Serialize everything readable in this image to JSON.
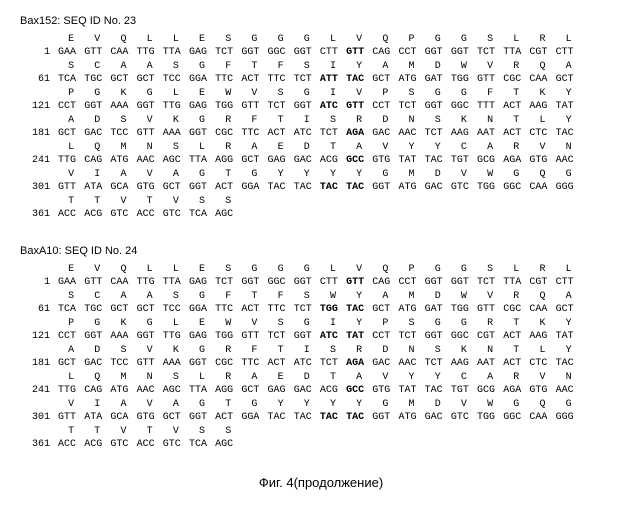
{
  "sequences": [
    {
      "header": "Bax152: SEQ ID No. 23",
      "rows": [
        {
          "pos": "1",
          "aa": [
            "E",
            "V",
            "Q",
            "L",
            "L",
            "E",
            "S",
            "G",
            "G",
            "G",
            "L",
            "V",
            "Q",
            "P",
            "G",
            "G",
            "S",
            "L",
            "R",
            "L"
          ],
          "nt": [
            "GAA",
            "GTT",
            "CAA",
            "TTG",
            "TTA",
            "GAG",
            "TCT",
            "GGT",
            "GGC",
            "GGT",
            "CTT",
            "GTT",
            "CAG",
            "CCT",
            "GGT",
            "GGT",
            "TCT",
            "TTA",
            "CGT",
            "CTT"
          ],
          "bold_nt": [
            11
          ]
        },
        {
          "pos": "61",
          "aa": [
            "S",
            "C",
            "A",
            "A",
            "S",
            "G",
            "F",
            "T",
            "F",
            "S",
            "I",
            "Y",
            "A",
            "M",
            "D",
            "W",
            "V",
            "R",
            "Q",
            "A"
          ],
          "nt": [
            "TCA",
            "TGC",
            "GCT",
            "GCT",
            "TCC",
            "GGA",
            "TTC",
            "ACT",
            "TTC",
            "TCT",
            "ATT",
            "TAC",
            "GCT",
            "ATG",
            "GAT",
            "TGG",
            "GTT",
            "CGC",
            "CAA",
            "GCT"
          ],
          "bold_nt": [
            10,
            11
          ]
        },
        {
          "pos": "121",
          "aa": [
            "P",
            "G",
            "K",
            "G",
            "L",
            "E",
            "W",
            "V",
            "S",
            "G",
            "I",
            "V",
            "P",
            "S",
            "G",
            "G",
            "F",
            "T",
            "K",
            "Y"
          ],
          "nt": [
            "CCT",
            "GGT",
            "AAA",
            "GGT",
            "TTG",
            "GAG",
            "TGG",
            "GTT",
            "TCT",
            "GGT",
            "ATC",
            "GTT",
            "CCT",
            "TCT",
            "GGT",
            "GGC",
            "TTT",
            "ACT",
            "AAG",
            "TAT"
          ],
          "bold_nt": [
            10,
            11
          ]
        },
        {
          "pos": "181",
          "aa": [
            "A",
            "D",
            "S",
            "V",
            "K",
            "G",
            "R",
            "F",
            "T",
            "I",
            "S",
            "R",
            "D",
            "N",
            "S",
            "K",
            "N",
            "T",
            "L",
            "Y"
          ],
          "nt": [
            "GCT",
            "GAC",
            "TCC",
            "GTT",
            "AAA",
            "GGT",
            "CGC",
            "TTC",
            "ACT",
            "ATC",
            "TCT",
            "AGA",
            "GAC",
            "AAC",
            "TCT",
            "AAG",
            "AAT",
            "ACT",
            "CTC",
            "TAC"
          ],
          "bold_nt": [
            11
          ]
        },
        {
          "pos": "241",
          "aa": [
            "L",
            "Q",
            "M",
            "N",
            "S",
            "L",
            "R",
            "A",
            "E",
            "D",
            "T",
            "A",
            "V",
            "Y",
            "Y",
            "C",
            "A",
            "R",
            "V",
            "N"
          ],
          "nt": [
            "TTG",
            "CAG",
            "ATG",
            "AAC",
            "AGC",
            "TTA",
            "AGG",
            "GCT",
            "GAG",
            "GAC",
            "ACG",
            "GCC",
            "GTG",
            "TAT",
            "TAC",
            "TGT",
            "GCG",
            "AGA",
            "GTG",
            "AAC"
          ],
          "bold_nt": [
            11
          ]
        },
        {
          "pos": "301",
          "aa": [
            "V",
            "I",
            "A",
            "V",
            "A",
            "G",
            "T",
            "G",
            "Y",
            "Y",
            "Y",
            "Y",
            "G",
            "M",
            "D",
            "V",
            "W",
            "G",
            "Q",
            "G"
          ],
          "nt": [
            "GTT",
            "ATA",
            "GCA",
            "GTG",
            "GCT",
            "GGT",
            "ACT",
            "GGA",
            "TAC",
            "TAC",
            "TAC",
            "TAC",
            "GGT",
            "ATG",
            "GAC",
            "GTC",
            "TGG",
            "GGC",
            "CAA",
            "GGG"
          ],
          "bold_nt": [
            10,
            11
          ]
        },
        {
          "pos": "361",
          "aa": [
            "T",
            "T",
            "V",
            "T",
            "V",
            "S",
            "S"
          ],
          "nt": [
            "ACC",
            "ACG",
            "GTC",
            "ACC",
            "GTC",
            "TCA",
            "AGC"
          ],
          "bold_nt": []
        }
      ]
    },
    {
      "header": "BaxA10: SEQ ID No. 24",
      "rows": [
        {
          "pos": "1",
          "aa": [
            "E",
            "V",
            "Q",
            "L",
            "L",
            "E",
            "S",
            "G",
            "G",
            "G",
            "L",
            "V",
            "Q",
            "P",
            "G",
            "G",
            "S",
            "L",
            "R",
            "L"
          ],
          "nt": [
            "GAA",
            "GTT",
            "CAA",
            "TTG",
            "TTA",
            "GAG",
            "TCT",
            "GGT",
            "GGC",
            "GGT",
            "CTT",
            "GTT",
            "CAG",
            "CCT",
            "GGT",
            "GGT",
            "TCT",
            "TTA",
            "CGT",
            "CTT"
          ],
          "bold_nt": [
            11
          ]
        },
        {
          "pos": "61",
          "aa": [
            "S",
            "C",
            "A",
            "A",
            "S",
            "G",
            "F",
            "T",
            "F",
            "S",
            "W",
            "Y",
            "A",
            "M",
            "D",
            "W",
            "V",
            "R",
            "Q",
            "A"
          ],
          "nt": [
            "TCA",
            "TGC",
            "GCT",
            "GCT",
            "TCC",
            "GGA",
            "TTC",
            "ACT",
            "TTC",
            "TCT",
            "TGG",
            "TAC",
            "GCT",
            "ATG",
            "GAT",
            "TGG",
            "GTT",
            "CGC",
            "CAA",
            "GCT"
          ],
          "bold_nt": [
            10,
            11
          ]
        },
        {
          "pos": "121",
          "aa": [
            "P",
            "G",
            "K",
            "G",
            "L",
            "E",
            "W",
            "V",
            "S",
            "G",
            "I",
            "Y",
            "P",
            "S",
            "G",
            "G",
            "R",
            "T",
            "K",
            "Y"
          ],
          "nt": [
            "CCT",
            "GGT",
            "AAA",
            "GGT",
            "TTG",
            "GAG",
            "TGG",
            "GTT",
            "TCT",
            "GGT",
            "ATC",
            "TAT",
            "CCT",
            "TCT",
            "GGT",
            "GGC",
            "CGT",
            "ACT",
            "AAG",
            "TAT"
          ],
          "bold_nt": [
            10,
            11
          ]
        },
        {
          "pos": "181",
          "aa": [
            "A",
            "D",
            "S",
            "V",
            "K",
            "G",
            "R",
            "F",
            "T",
            "I",
            "S",
            "R",
            "D",
            "N",
            "S",
            "K",
            "N",
            "T",
            "L",
            "Y"
          ],
          "nt": [
            "GCT",
            "GAC",
            "TCC",
            "GTT",
            "AAA",
            "GGT",
            "CGC",
            "TTC",
            "ACT",
            "ATC",
            "TCT",
            "AGA",
            "GAC",
            "AAC",
            "TCT",
            "AAG",
            "AAT",
            "ACT",
            "CTC",
            "TAC"
          ],
          "bold_nt": [
            11
          ]
        },
        {
          "pos": "241",
          "aa": [
            "L",
            "Q",
            "M",
            "N",
            "S",
            "L",
            "R",
            "A",
            "E",
            "D",
            "T",
            "A",
            "V",
            "Y",
            "Y",
            "C",
            "A",
            "R",
            "V",
            "N"
          ],
          "nt": [
            "TTG",
            "CAG",
            "ATG",
            "AAC",
            "AGC",
            "TTA",
            "AGG",
            "GCT",
            "GAG",
            "GAC",
            "ACG",
            "GCC",
            "GTG",
            "TAT",
            "TAC",
            "TGT",
            "GCG",
            "AGA",
            "GTG",
            "AAC"
          ],
          "bold_nt": [
            11
          ]
        },
        {
          "pos": "301",
          "aa": [
            "V",
            "I",
            "A",
            "V",
            "A",
            "G",
            "T",
            "G",
            "Y",
            "Y",
            "Y",
            "Y",
            "G",
            "M",
            "D",
            "V",
            "W",
            "G",
            "Q",
            "G"
          ],
          "nt": [
            "GTT",
            "ATA",
            "GCA",
            "GTG",
            "GCT",
            "GGT",
            "ACT",
            "GGA",
            "TAC",
            "TAC",
            "TAC",
            "TAC",
            "GGT",
            "ATG",
            "GAC",
            "GTC",
            "TGG",
            "GGC",
            "CAA",
            "GGG"
          ],
          "bold_nt": [
            10,
            11
          ]
        },
        {
          "pos": "361",
          "aa": [
            "T",
            "T",
            "V",
            "T",
            "V",
            "S",
            "S"
          ],
          "nt": [
            "ACC",
            "ACG",
            "GTC",
            "ACC",
            "GTC",
            "TCA",
            "AGC"
          ],
          "bold_nt": []
        }
      ]
    }
  ],
  "caption": "Фиг. 4(продолжение)"
}
